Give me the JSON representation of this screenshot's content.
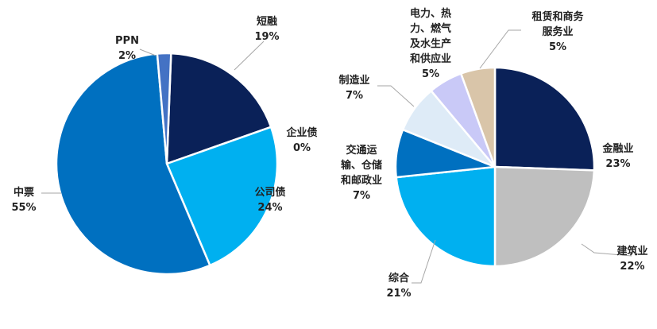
{
  "chart_data": [
    {
      "type": "pie",
      "series": [
        {
          "label": "短融",
          "value_label": "19%",
          "value": 19,
          "color": "#0a2158"
        },
        {
          "label": "企业债",
          "value_label": "0%",
          "value": 0,
          "color": "#0a2158"
        },
        {
          "label": "公司债",
          "value_label": "24%",
          "value": 24,
          "color": "#00b0f0"
        },
        {
          "label": "中票",
          "value_label": "55%",
          "value": 55,
          "color": "#0070c0"
        },
        {
          "label": "PPN",
          "value_label": "2%",
          "value": 2,
          "color": "#4472c4"
        }
      ]
    },
    {
      "type": "pie",
      "series": [
        {
          "label": "金融业",
          "value_label": "23%",
          "value": 23,
          "color": "#0a2158"
        },
        {
          "label": "建筑业",
          "value_label": "22%",
          "value": 22,
          "color": "#bfbfbf"
        },
        {
          "label": "综合",
          "value_label": "21%",
          "value": 21,
          "color": "#00b0f0"
        },
        {
          "label": "交通运输、仓储和邮政业",
          "label_lines": [
            "交通运",
            "输、仓储",
            "和邮政业"
          ],
          "value_label": "7%",
          "value": 7,
          "color": "#0070c0"
        },
        {
          "label": "制造业",
          "value_label": "7%",
          "value": 7,
          "color": "#deebf7"
        },
        {
          "label": "电力、热力、燃气及水生产和供应业",
          "label_lines": [
            "电力、热",
            "力、燃气",
            "及水生产",
            "和供应业"
          ],
          "value_label": "5%",
          "value": 5,
          "color": "#c9c9f7"
        },
        {
          "label": "租赁和商务服务业",
          "label_lines": [
            "租赁和商务",
            "服务业"
          ],
          "value_label": "5%",
          "value": 5,
          "color": "#d9c5a9"
        }
      ]
    }
  ]
}
